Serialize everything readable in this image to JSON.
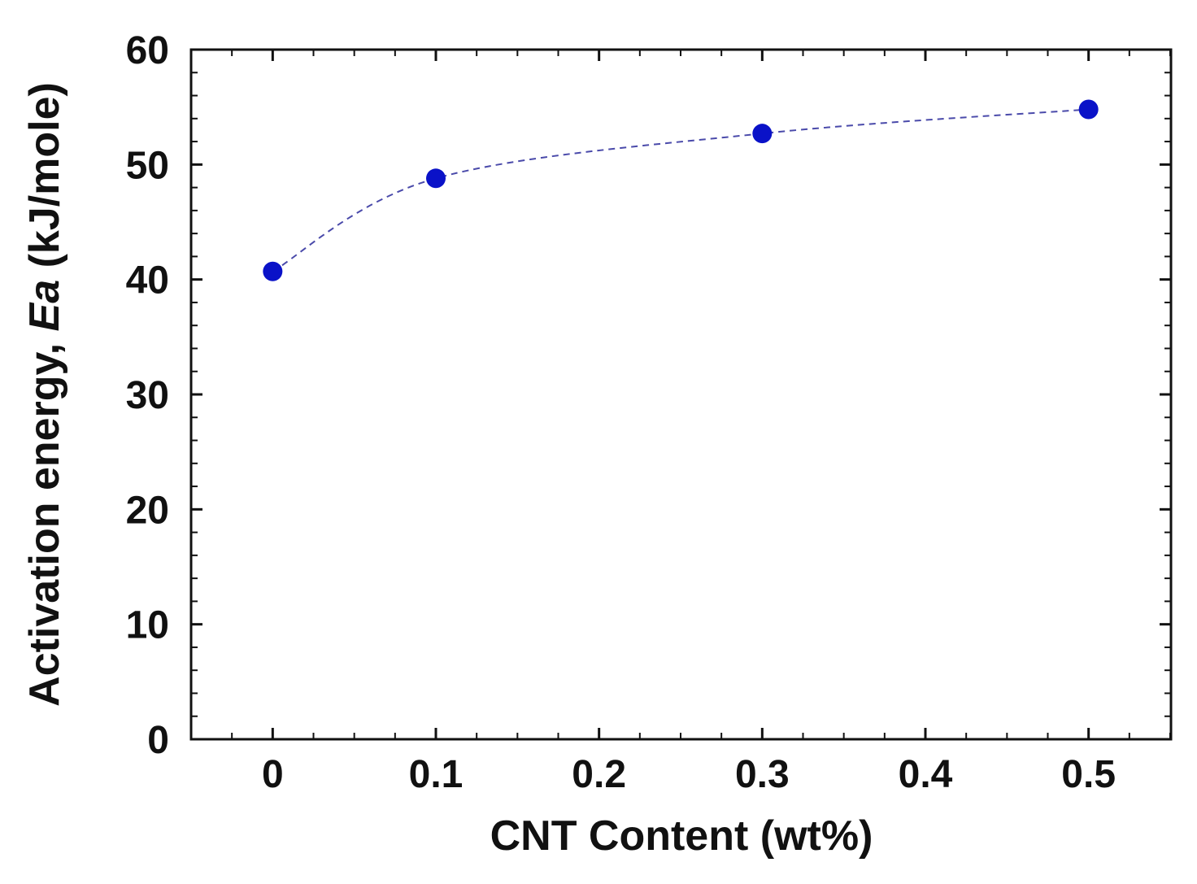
{
  "chart_data": {
    "type": "scatter",
    "xlabel": "CNT Content (wt%)",
    "ylabel": {
      "prefix": "Activation energy, ",
      "italic": "Ea",
      "suffix": " (kJ/mole)"
    },
    "xlim": [
      -0.05,
      0.5505
    ],
    "ylim": [
      0,
      60
    ],
    "x_ticks": [
      {
        "value": 0,
        "label": "0"
      },
      {
        "value": 0.1,
        "label": "0.1"
      },
      {
        "value": 0.2,
        "label": "0.2"
      },
      {
        "value": 0.3,
        "label": "0.3"
      },
      {
        "value": 0.4,
        "label": "0.4"
      },
      {
        "value": 0.5,
        "label": "0.5"
      }
    ],
    "y_ticks": [
      {
        "value": 0,
        "label": "0"
      },
      {
        "value": 10,
        "label": "10"
      },
      {
        "value": 20,
        "label": "20"
      },
      {
        "value": 30,
        "label": "30"
      },
      {
        "value": 40,
        "label": "40"
      },
      {
        "value": 50,
        "label": "50"
      },
      {
        "value": 60,
        "label": "60"
      }
    ],
    "series": [
      {
        "x": [
          0,
          0.1,
          0.3,
          0.5
        ],
        "y": [
          40.7,
          48.8,
          52.7,
          54.8
        ],
        "color": "#0a12c8",
        "marker": "circle",
        "trend_line": "dashed"
      }
    ],
    "grid": false,
    "legend": "none"
  }
}
